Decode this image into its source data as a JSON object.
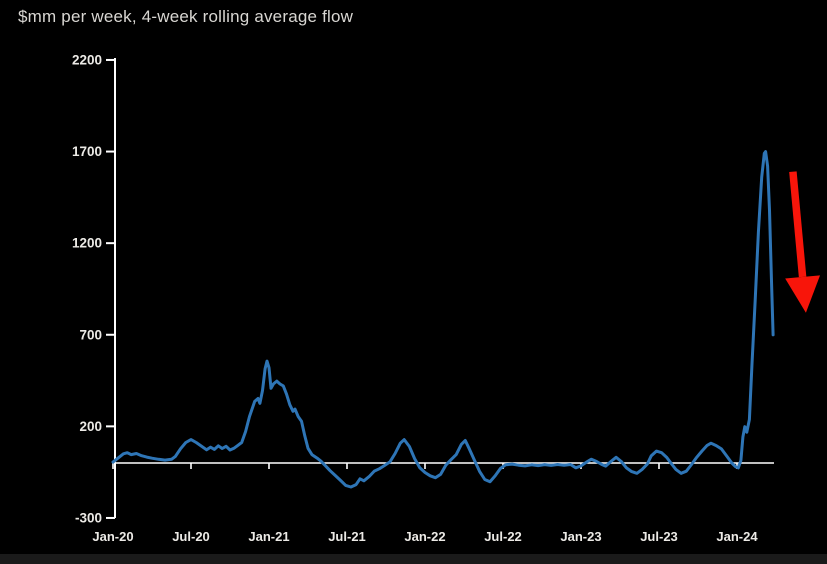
{
  "chart_data": {
    "type": "line",
    "title": "$mm per week, 4-week rolling average flow",
    "background_color": "#000000",
    "axis_color": "#FFFFFF",
    "tick_label_color": "#ECEAE6",
    "title_color": "#D8D6D2",
    "grid": "off",
    "legend": "none",
    "x_axis": {
      "tick_labels": [
        "Jan-20",
        "Jul-20",
        "Jan-21",
        "Jul-21",
        "Jan-22",
        "Jul-22",
        "Jan-23",
        "Jul-23",
        "Jan-24"
      ],
      "tick_interval_months": 6,
      "unit": "months since Jan-2020"
    },
    "y_axis": {
      "ticks": [
        2200,
        1700,
        1200,
        700,
        200,
        -300
      ],
      "min": -300,
      "max": 2200,
      "unit": "$mm per week"
    },
    "series": [
      {
        "name": "4-week rolling average flow",
        "unit": "$mm per week",
        "color": "#2E75B6",
        "points": [
          [
            0,
            5
          ],
          [
            0.4,
            28
          ],
          [
            0.8,
            50
          ],
          [
            1.1,
            56
          ],
          [
            1.4,
            46
          ],
          [
            1.8,
            52
          ],
          [
            2.2,
            40
          ],
          [
            2.6,
            32
          ],
          [
            3,
            26
          ],
          [
            3.5,
            20
          ],
          [
            4,
            16
          ],
          [
            4.5,
            20
          ],
          [
            4.8,
            36
          ],
          [
            5.2,
            78
          ],
          [
            5.6,
            112
          ],
          [
            6,
            128
          ],
          [
            6.4,
            112
          ],
          [
            6.8,
            92
          ],
          [
            7.2,
            72
          ],
          [
            7.5,
            86
          ],
          [
            7.8,
            74
          ],
          [
            8.1,
            94
          ],
          [
            8.4,
            79
          ],
          [
            8.7,
            91
          ],
          [
            9,
            71
          ],
          [
            9.3,
            80
          ],
          [
            9.6,
            96
          ],
          [
            9.9,
            112
          ],
          [
            10.2,
            172
          ],
          [
            10.5,
            254
          ],
          [
            10.9,
            336
          ],
          [
            11.15,
            352
          ],
          [
            11.3,
            326
          ],
          [
            11.5,
            395
          ],
          [
            11.7,
            515
          ],
          [
            11.85,
            556
          ],
          [
            12,
            520
          ],
          [
            12.15,
            408
          ],
          [
            12.35,
            432
          ],
          [
            12.6,
            447
          ],
          [
            12.85,
            431
          ],
          [
            13.1,
            421
          ],
          [
            13.35,
            376
          ],
          [
            13.6,
            318
          ],
          [
            13.85,
            282
          ],
          [
            14,
            294
          ],
          [
            14.25,
            252
          ],
          [
            14.5,
            228
          ],
          [
            14.75,
            148
          ],
          [
            15,
            80
          ],
          [
            15.3,
            46
          ],
          [
            15.7,
            27
          ],
          [
            16,
            10
          ],
          [
            16.3,
            -12
          ],
          [
            16.7,
            -42
          ],
          [
            17.1,
            -68
          ],
          [
            17.5,
            -95
          ],
          [
            17.9,
            -122
          ],
          [
            18.3,
            -131
          ],
          [
            18.7,
            -118
          ],
          [
            19,
            -86
          ],
          [
            19.3,
            -97
          ],
          [
            19.7,
            -74
          ],
          [
            20.1,
            -44
          ],
          [
            20.5,
            -31
          ],
          [
            20.9,
            -13
          ],
          [
            21.3,
            6
          ],
          [
            21.7,
            52
          ],
          [
            22.1,
            108
          ],
          [
            22.4,
            128
          ],
          [
            22.8,
            90
          ],
          [
            23.2,
            24
          ],
          [
            23.6,
            -26
          ],
          [
            24,
            -52
          ],
          [
            24.4,
            -70
          ],
          [
            24.8,
            -80
          ],
          [
            25.2,
            -62
          ],
          [
            25.6,
            -12
          ],
          [
            26,
            18
          ],
          [
            26.4,
            46
          ],
          [
            26.8,
            102
          ],
          [
            27.1,
            123
          ],
          [
            27.4,
            78
          ],
          [
            27.8,
            16
          ],
          [
            28.2,
            -46
          ],
          [
            28.6,
            -90
          ],
          [
            29,
            -102
          ],
          [
            29.4,
            -70
          ],
          [
            29.8,
            -30
          ],
          [
            30.2,
            -10
          ],
          [
            30.7,
            -6
          ],
          [
            31.2,
            -12
          ],
          [
            31.7,
            -16
          ],
          [
            32.2,
            -10
          ],
          [
            32.7,
            -14
          ],
          [
            33.2,
            -9
          ],
          [
            33.7,
            -13
          ],
          [
            34.2,
            -8
          ],
          [
            34.7,
            -12
          ],
          [
            35.2,
            -8
          ],
          [
            35.6,
            -26
          ],
          [
            36,
            -16
          ],
          [
            36.4,
            4
          ],
          [
            36.8,
            21
          ],
          [
            37.2,
            8
          ],
          [
            37.6,
            -8
          ],
          [
            37.9,
            -17
          ],
          [
            38.3,
            8
          ],
          [
            38.7,
            31
          ],
          [
            39.1,
            8
          ],
          [
            39.5,
            -27
          ],
          [
            39.9,
            -47
          ],
          [
            40.3,
            -56
          ],
          [
            40.7,
            -35
          ],
          [
            41.1,
            -6
          ],
          [
            41.4,
            39
          ],
          [
            41.8,
            65
          ],
          [
            42.2,
            56
          ],
          [
            42.6,
            30
          ],
          [
            43,
            -8
          ],
          [
            43.3,
            -35
          ],
          [
            43.7,
            -56
          ],
          [
            44.1,
            -45
          ],
          [
            44.5,
            -8
          ],
          [
            44.9,
            31
          ],
          [
            45.3,
            65
          ],
          [
            45.7,
            96
          ],
          [
            46,
            108
          ],
          [
            46.4,
            95
          ],
          [
            46.8,
            77
          ],
          [
            47.2,
            39
          ],
          [
            47.6,
            0
          ],
          [
            47.9,
            -21
          ],
          [
            48.1,
            -27
          ],
          [
            48.3,
            14
          ],
          [
            48.45,
            142
          ],
          [
            48.6,
            198
          ],
          [
            48.75,
            168
          ],
          [
            48.95,
            238
          ],
          [
            49.15,
            530
          ],
          [
            49.4,
            890
          ],
          [
            49.65,
            1260
          ],
          [
            49.9,
            1560
          ],
          [
            50.1,
            1690
          ],
          [
            50.2,
            1700
          ],
          [
            50.35,
            1620
          ],
          [
            50.5,
            1380
          ],
          [
            50.65,
            1010
          ],
          [
            50.78,
            700
          ]
        ]
      }
    ],
    "annotations": [
      {
        "type": "arrow",
        "color": "#F8150A",
        "direction": "down",
        "from_xy": [
          52.3,
          1590
        ],
        "to_xy": [
          53.3,
          820
        ]
      }
    ],
    "notable_values_approx": {
      "peak_early_2021": 556,
      "trough_mid_2021": -131,
      "peak_early_2024": 1700,
      "latest": 700
    }
  }
}
